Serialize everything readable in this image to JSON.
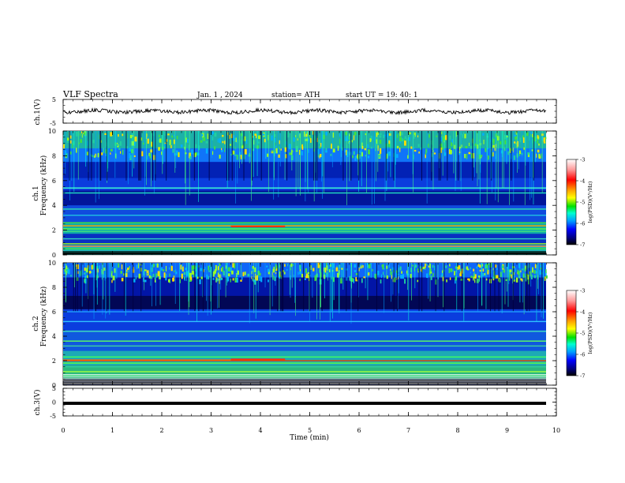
{
  "header": {
    "title": "VLF  Spectra",
    "date": "Jan.  1  , 2024",
    "station": "station= ATH",
    "start": "start  UT  =    19: 40: 1"
  },
  "colorbar": {
    "label": "log(PSD)(V²/Hz)",
    "ticks": [
      "-3",
      "-4",
      "-5",
      "-6",
      "-7"
    ],
    "colors": [
      "#ffffff",
      "#ff9a9a",
      "#ff0000",
      "#ffa000",
      "#ffff00",
      "#00e000",
      "#00ffd0",
      "#00a0ff",
      "#0000ff",
      "#000080",
      "#000000"
    ]
  },
  "chart_data": [
    {
      "type": "line",
      "name": "ch1-waveform",
      "ylabel": "ch.1(V)",
      "ylim": [
        -5,
        5
      ],
      "ytick_labels": [
        "5",
        "-5"
      ],
      "xlim": [
        0,
        10
      ],
      "description_level": -0.3
    },
    {
      "type": "heatmap",
      "name": "ch1-spectrogram",
      "ylabel": "ch.1\nFrequency (kHz)",
      "ylabel_lines": [
        "ch.1",
        "Frequency  (kHz)"
      ],
      "ylim": [
        0,
        10
      ],
      "ytick_labels": [
        "10",
        "8",
        "6",
        "4",
        "2",
        "0"
      ],
      "xlim": [
        0,
        10
      ],
      "clim": [
        -7,
        -3
      ]
    },
    {
      "type": "heatmap",
      "name": "ch2-spectrogram",
      "ylabel_lines": [
        "ch.2",
        "Frequency  (kHz)"
      ],
      "ylim": [
        0,
        10
      ],
      "ytick_labels": [
        "10",
        "8",
        "6",
        "4",
        "2",
        "0"
      ],
      "xlim": [
        0,
        10
      ],
      "clim": [
        -7,
        -3
      ]
    },
    {
      "type": "line",
      "name": "ch3-waveform",
      "ylabel": "ch.3(V)",
      "ylim": [
        -5,
        5
      ],
      "ytick_labels": [
        "5",
        "0",
        "-5"
      ],
      "xlim": [
        0,
        10
      ],
      "level": -1.1
    }
  ],
  "xaxis": {
    "label": "Time  (min)",
    "ticks": [
      "0",
      "1",
      "2",
      "3",
      "4",
      "5",
      "6",
      "7",
      "8",
      "9",
      "10"
    ]
  }
}
